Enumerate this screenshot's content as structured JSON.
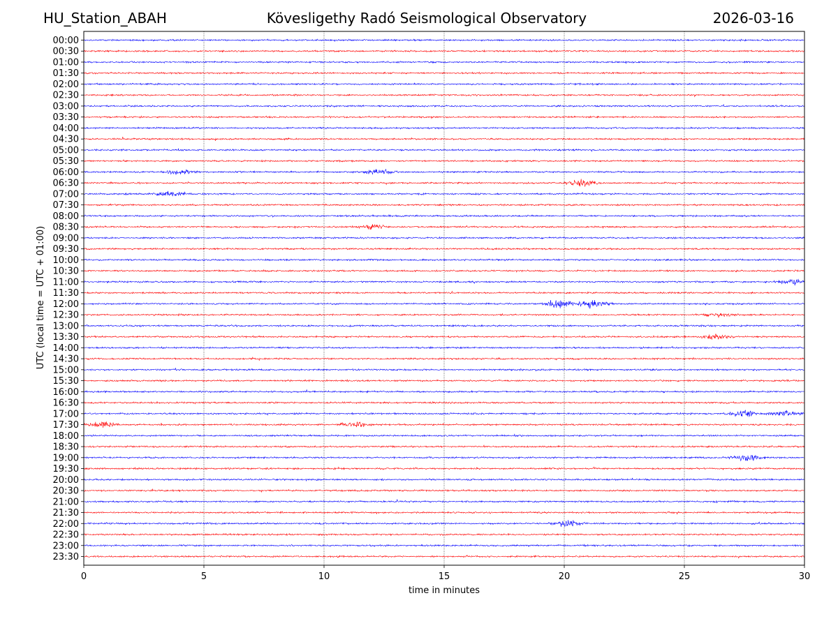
{
  "header": {
    "station": "HU_Station_ABAH",
    "observatory": "Kövesligethy Radó Seismological Observatory",
    "date": "2026-03-16"
  },
  "chart_data": {
    "type": "line",
    "title": "Kövesligethy Radó Seismological Observatory",
    "xlabel": "time in minutes",
    "ylabel": "UTC (local time = UTC + 01:00)",
    "xlim": [
      0,
      30
    ],
    "x_ticks": [
      0,
      5,
      10,
      15,
      20,
      25,
      30
    ],
    "grid": "vertical dotted lines at x ticks",
    "row_labels": [
      "00:00",
      "00:30",
      "01:00",
      "01:30",
      "02:00",
      "02:30",
      "03:00",
      "03:30",
      "04:00",
      "04:30",
      "05:00",
      "05:30",
      "06:00",
      "06:30",
      "07:00",
      "07:30",
      "08:00",
      "08:30",
      "09:00",
      "09:30",
      "10:00",
      "10:30",
      "11:00",
      "11:30",
      "12:00",
      "12:30",
      "13:00",
      "13:30",
      "14:00",
      "14:30",
      "15:00",
      "15:30",
      "16:00",
      "16:30",
      "17:00",
      "17:30",
      "18:00",
      "18:30",
      "19:00",
      "19:30",
      "20:00",
      "20:30",
      "21:00",
      "21:30",
      "22:00",
      "22:30",
      "23:00",
      "23:30"
    ],
    "series_colors": [
      "#0000ff",
      "#ff0000"
    ],
    "base_amplitude": 0.1,
    "events": [
      {
        "row": "06:30",
        "minute": 20.8,
        "amplitude": 0.45
      },
      {
        "row": "12:00",
        "minute": 19.8,
        "amplitude": 0.5
      },
      {
        "row": "12:00",
        "minute": 21.2,
        "amplitude": 0.45
      },
      {
        "row": "13:30",
        "minute": 26.3,
        "amplitude": 0.35
      },
      {
        "row": "17:00",
        "minute": 27.5,
        "amplitude": 0.4
      },
      {
        "row": "17:00",
        "minute": 29.2,
        "amplitude": 0.3
      },
      {
        "row": "17:30",
        "minute": 0.8,
        "amplitude": 0.35
      },
      {
        "row": "17:30",
        "minute": 11.3,
        "amplitude": 0.3
      },
      {
        "row": "19:00",
        "minute": 27.6,
        "amplitude": 0.35
      },
      {
        "row": "22:00",
        "minute": 20.2,
        "amplitude": 0.4
      },
      {
        "row": "06:00",
        "minute": 4.0,
        "amplitude": 0.3
      },
      {
        "row": "06:00",
        "minute": 12.3,
        "amplitude": 0.3
      },
      {
        "row": "07:00",
        "minute": 3.7,
        "amplitude": 0.3
      },
      {
        "row": "08:30",
        "minute": 12.0,
        "amplitude": 0.25
      },
      {
        "row": "11:00",
        "minute": 29.6,
        "amplitude": 0.3
      },
      {
        "row": "12:30",
        "minute": 26.5,
        "amplitude": 0.25
      }
    ]
  }
}
